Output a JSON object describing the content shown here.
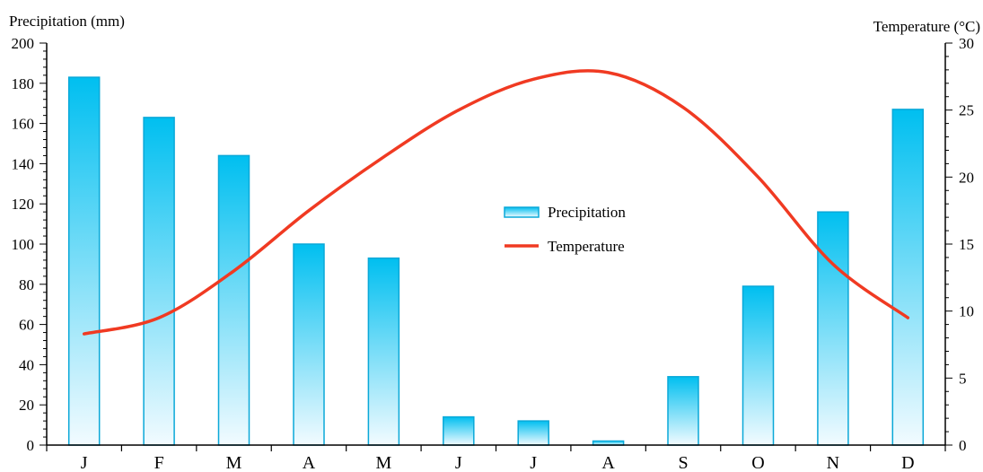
{
  "chart_data": {
    "type": "bar+line",
    "categories": [
      "J",
      "F",
      "M",
      "A",
      "M",
      "J",
      "J",
      "A",
      "S",
      "O",
      "N",
      "D"
    ],
    "series": [
      {
        "name": "Precipitation",
        "type": "bar",
        "axis": "left",
        "values": [
          183,
          163,
          144,
          100,
          93,
          14,
          12,
          2,
          34,
          79,
          116,
          167
        ]
      },
      {
        "name": "Temperature",
        "type": "line",
        "axis": "right",
        "values": [
          8.3,
          9.5,
          13.0,
          17.5,
          21.5,
          25.0,
          27.3,
          27.8,
          25.2,
          20.0,
          13.5,
          9.5
        ]
      }
    ],
    "ylabel_left": "Precipitation (mm)",
    "ylabel_right": "Temperature (°C)",
    "ylim_left": [
      0,
      200
    ],
    "ylim_right": [
      0,
      30
    ],
    "yticks_left": [
      "0",
      "20",
      "40",
      "60",
      "80",
      "100",
      "120",
      "140",
      "160",
      "180",
      "200"
    ],
    "yticks_right": [
      "0",
      "5",
      "10",
      "15",
      "20",
      "25",
      "30"
    ],
    "grid": false,
    "legend_position": "center",
    "colors": {
      "bar_top": "#00bff0",
      "bar_bottom": "#f2fbff",
      "line": "#f03a22",
      "axis": "#000000"
    }
  }
}
